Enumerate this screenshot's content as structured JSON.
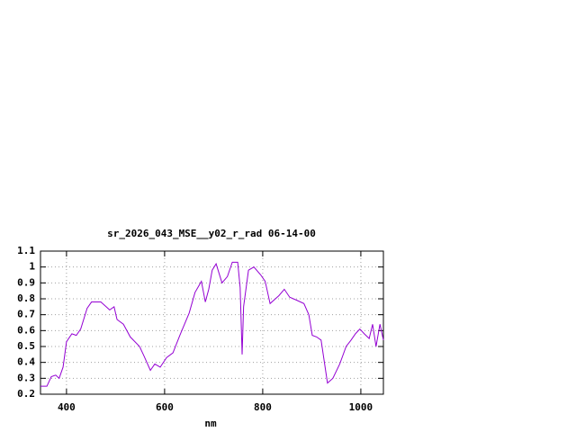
{
  "chart_data": {
    "type": "line",
    "title": "sr_2026_043_MSE__y02_r_rad 06-14-00",
    "xlabel": "nm",
    "x": [
      347,
      360,
      369,
      378,
      385,
      393,
      400,
      411,
      420,
      429,
      442,
      451,
      470,
      481,
      488,
      497,
      503,
      516,
      530,
      549,
      558,
      571,
      580,
      591,
      604,
      617,
      631,
      650,
      662,
      675,
      683,
      690,
      697,
      705,
      717,
      728,
      738,
      749,
      754,
      758,
      761,
      771,
      782,
      796,
      805,
      815,
      833,
      844,
      855,
      870,
      884,
      894,
      901,
      910,
      919,
      932,
      943,
      957,
      970,
      980,
      989,
      998,
      1007,
      1017,
      1024,
      1031,
      1039,
      1046
    ],
    "series": [
      {
        "color": "#9400d3",
        "values": [
          0.25,
          0.25,
          0.31,
          0.32,
          0.3,
          0.37,
          0.53,
          0.58,
          0.57,
          0.61,
          0.74,
          0.78,
          0.78,
          0.75,
          0.73,
          0.75,
          0.67,
          0.64,
          0.56,
          0.5,
          0.44,
          0.35,
          0.39,
          0.37,
          0.43,
          0.46,
          0.57,
          0.71,
          0.84,
          0.91,
          0.78,
          0.86,
          0.98,
          1.02,
          0.9,
          0.94,
          1.03,
          1.03,
          0.87,
          0.45,
          0.75,
          0.98,
          1.0,
          0.95,
          0.91,
          0.77,
          0.82,
          0.86,
          0.81,
          0.79,
          0.77,
          0.7,
          0.57,
          0.56,
          0.54,
          0.27,
          0.3,
          0.39,
          0.5,
          0.54,
          0.58,
          0.61,
          0.58,
          0.55,
          0.64,
          0.5,
          0.64,
          0.54
        ]
      }
    ],
    "xlim": [
      347,
      1046
    ],
    "ylim": [
      0.2,
      1.1
    ],
    "xticks": [
      400,
      600,
      800,
      1000
    ],
    "yticks": [
      0.2,
      0.3,
      0.4,
      0.5,
      0.6,
      0.7,
      0.8,
      0.9,
      1,
      1.1
    ],
    "grid": true
  }
}
